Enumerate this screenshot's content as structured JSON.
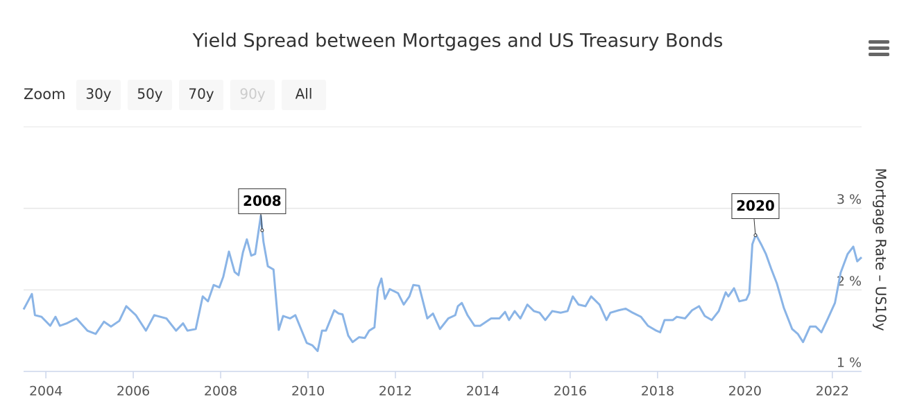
{
  "chart_data": {
    "type": "line",
    "title": "Yield Spread between Mortgages and US Treasury Bonds",
    "y_label": "Mortgage Rate – US10y",
    "range_selector": {
      "label": "Zoom",
      "buttons": [
        {
          "text": "30y",
          "enabled": true
        },
        {
          "text": "50y",
          "enabled": true
        },
        {
          "text": "70y",
          "enabled": true
        },
        {
          "text": "90y",
          "enabled": false
        },
        {
          "text": "All",
          "enabled": true
        }
      ]
    },
    "color": "#8ab4e6",
    "xlim": [
      2003.49,
      2022.67
    ],
    "xticks": [
      2004,
      2006,
      2008,
      2010,
      2012,
      2014,
      2016,
      2018,
      2020,
      2022
    ],
    "ylim": [
      1,
      4
    ],
    "yticks": [
      {
        "value": 1,
        "label": "1 %"
      },
      {
        "value": 2,
        "label": "2 %"
      },
      {
        "value": 3,
        "label": "3 %"
      }
    ],
    "grid": true,
    "annotations": [
      {
        "text": "2008",
        "x": 2008.95,
        "y": 2.73
      },
      {
        "text": "2020",
        "x": 2020.24,
        "y": 2.67
      }
    ],
    "x": [
      2003.49,
      2003.68,
      2003.75,
      2003.9,
      2004.1,
      2004.22,
      2004.32,
      2004.48,
      2004.7,
      2004.95,
      2005.14,
      2005.33,
      2005.49,
      2005.68,
      2005.84,
      2006.06,
      2006.29,
      2006.48,
      2006.76,
      2006.98,
      2007.14,
      2007.24,
      2007.43,
      2007.59,
      2007.71,
      2007.84,
      2007.97,
      2008.06,
      2008.19,
      2008.32,
      2008.41,
      2008.51,
      2008.6,
      2008.7,
      2008.79,
      2008.92,
      2008.98,
      2009.08,
      2009.21,
      2009.33,
      2009.43,
      2009.59,
      2009.71,
      2009.84,
      2009.97,
      2010.1,
      2010.22,
      2010.32,
      2010.41,
      2010.6,
      2010.7,
      2010.79,
      2010.92,
      2011.02,
      2011.17,
      2011.3,
      2011.4,
      2011.52,
      2011.6,
      2011.68,
      2011.76,
      2011.87,
      2012.06,
      2012.19,
      2012.32,
      2012.41,
      2012.54,
      2012.73,
      2012.86,
      2013.02,
      2013.21,
      2013.37,
      2013.43,
      2013.52,
      2013.65,
      2013.81,
      2013.94,
      2014.19,
      2014.38,
      2014.51,
      2014.6,
      2014.73,
      2014.86,
      2015.02,
      2015.17,
      2015.3,
      2015.43,
      2015.59,
      2015.78,
      2015.94,
      2016.06,
      2016.19,
      2016.35,
      2016.48,
      2016.67,
      2016.83,
      2016.92,
      2017.11,
      2017.27,
      2017.43,
      2017.62,
      2017.78,
      2017.97,
      2018.06,
      2018.16,
      2018.35,
      2018.44,
      2018.63,
      2018.79,
      2018.95,
      2019.08,
      2019.24,
      2019.4,
      2019.56,
      2019.62,
      2019.75,
      2019.87,
      2020.03,
      2020.1,
      2020.17,
      2020.25,
      2020.38,
      2020.48,
      2020.6,
      2020.73,
      2020.89,
      2021.08,
      2021.21,
      2021.33,
      2021.49,
      2021.62,
      2021.75,
      2021.9,
      2022.06,
      2022.19,
      2022.35,
      2022.48,
      2022.57,
      2022.67
    ],
    "values": [
      1.76,
      1.95,
      1.69,
      1.67,
      1.56,
      1.67,
      1.56,
      1.59,
      1.65,
      1.5,
      1.46,
      1.61,
      1.55,
      1.62,
      1.8,
      1.69,
      1.5,
      1.69,
      1.65,
      1.5,
      1.59,
      1.5,
      1.52,
      1.92,
      1.86,
      2.06,
      2.03,
      2.16,
      2.47,
      2.22,
      2.18,
      2.46,
      2.62,
      2.42,
      2.44,
      2.91,
      2.59,
      2.29,
      2.25,
      1.51,
      1.68,
      1.65,
      1.69,
      1.52,
      1.35,
      1.32,
      1.25,
      1.5,
      1.5,
      1.75,
      1.71,
      1.7,
      1.44,
      1.36,
      1.42,
      1.41,
      1.5,
      1.54,
      2.02,
      2.14,
      1.89,
      2.01,
      1.96,
      1.82,
      1.92,
      2.06,
      2.05,
      1.65,
      1.71,
      1.52,
      1.65,
      1.69,
      1.8,
      1.84,
      1.69,
      1.56,
      1.56,
      1.65,
      1.65,
      1.73,
      1.63,
      1.74,
      1.65,
      1.82,
      1.74,
      1.72,
      1.63,
      1.74,
      1.72,
      1.74,
      1.92,
      1.82,
      1.8,
      1.92,
      1.82,
      1.63,
      1.72,
      1.75,
      1.77,
      1.72,
      1.67,
      1.56,
      1.5,
      1.48,
      1.63,
      1.63,
      1.67,
      1.65,
      1.75,
      1.8,
      1.68,
      1.63,
      1.74,
      1.97,
      1.92,
      2.02,
      1.86,
      1.88,
      1.96,
      2.56,
      2.68,
      2.55,
      2.44,
      2.26,
      2.08,
      1.78,
      1.52,
      1.46,
      1.36,
      1.55,
      1.55,
      1.48,
      1.65,
      1.84,
      2.21,
      2.44,
      2.53,
      2.35,
      2.4
    ]
  }
}
